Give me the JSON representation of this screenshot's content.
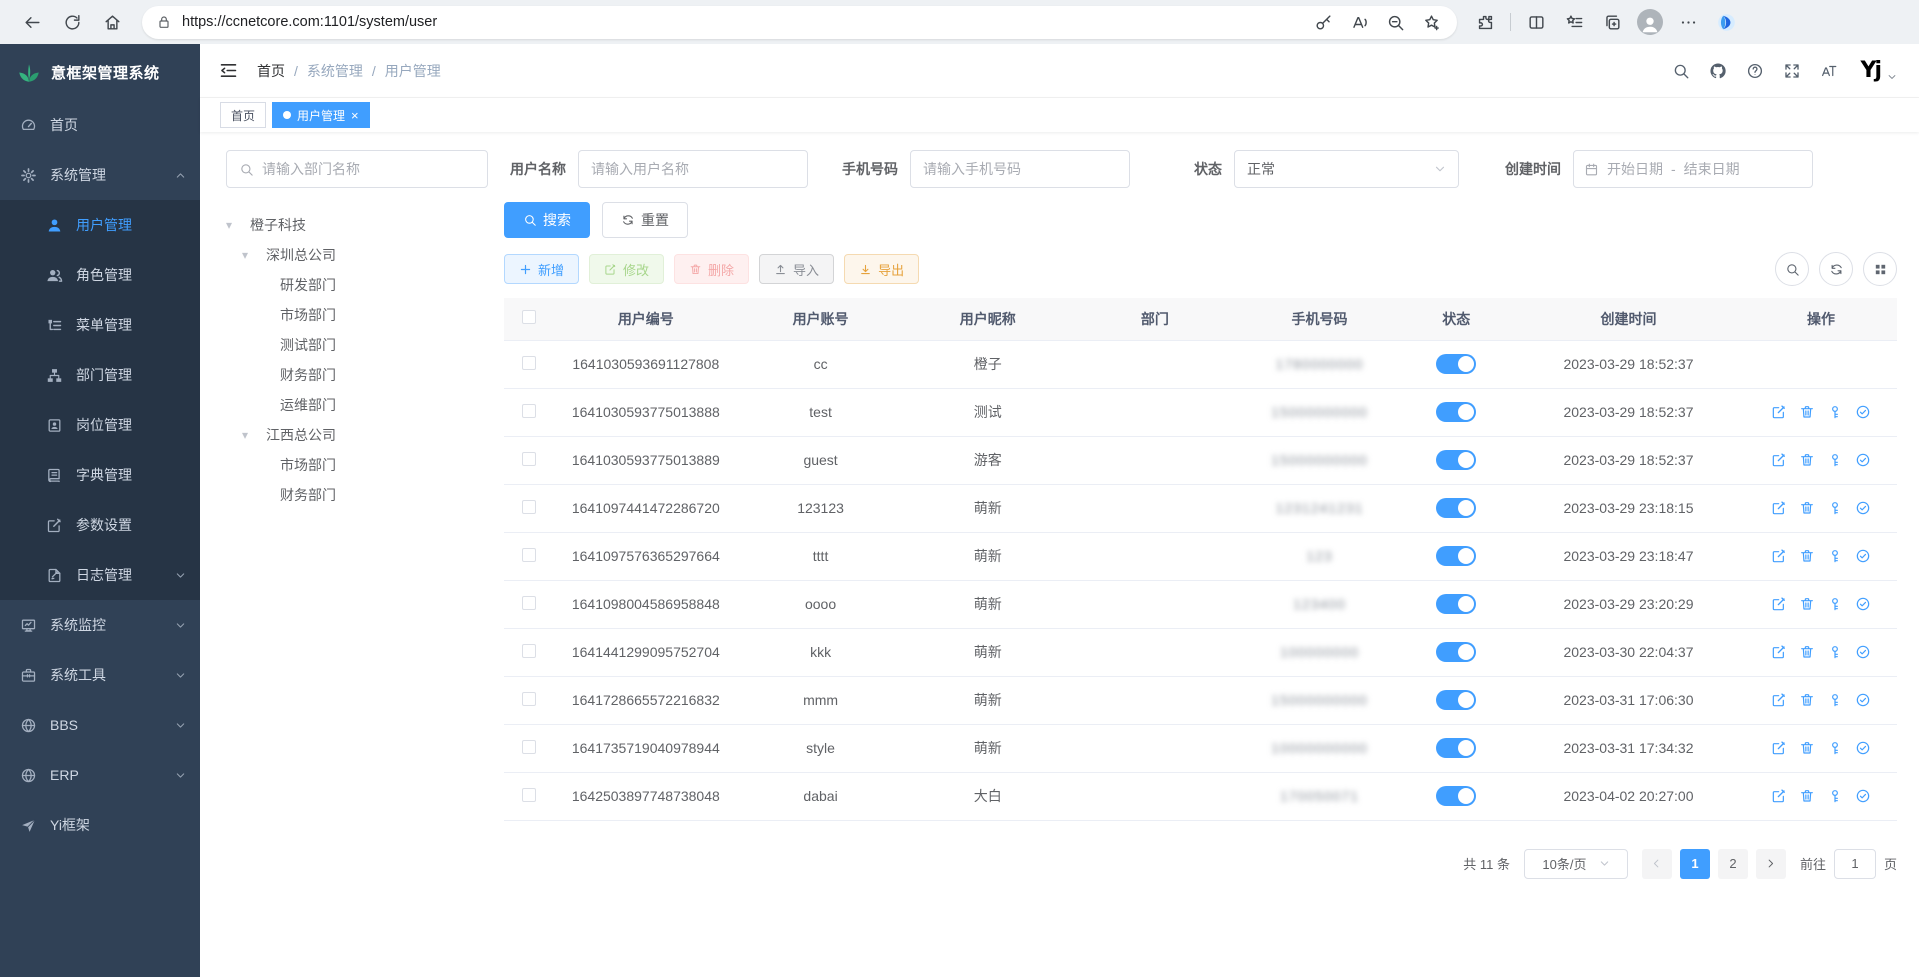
{
  "browser": {
    "url": "https://ccnetcore.com:1101/system/user",
    "left_icons": [
      "back",
      "refresh",
      "home"
    ],
    "pill_icons": [
      "key",
      "read-aloud",
      "zoom-out",
      "favorite-add"
    ],
    "right_icons": [
      "extensions",
      "split-screen",
      "favorites",
      "collections"
    ],
    "far_icons": [
      "more"
    ]
  },
  "sidebar": {
    "logo_text": "意框架管理系统",
    "items": [
      {
        "name": "home",
        "label": "首页",
        "icon": "dashboard",
        "level": 1
      },
      {
        "name": "system-mgmt",
        "label": "系统管理",
        "icon": "gear",
        "level": 1,
        "arrow": "up"
      },
      {
        "name": "user-mgmt",
        "label": "用户管理",
        "icon": "user",
        "level": 2,
        "active": true
      },
      {
        "name": "role-mgmt",
        "label": "角色管理",
        "icon": "users",
        "level": 2
      },
      {
        "name": "menu-mgmt",
        "label": "菜单管理",
        "icon": "menutree",
        "level": 2
      },
      {
        "name": "dept-mgmt",
        "label": "部门管理",
        "icon": "org",
        "level": 2
      },
      {
        "name": "post-mgmt",
        "label": "岗位管理",
        "icon": "badge",
        "level": 2
      },
      {
        "name": "dict-mgmt",
        "label": "字典管理",
        "icon": "book",
        "level": 2
      },
      {
        "name": "param-settings",
        "label": "参数设置",
        "icon": "editsq",
        "level": 2
      },
      {
        "name": "log-mgmt",
        "label": "日志管理",
        "icon": "logdoc",
        "level": 2,
        "arrow": "down"
      },
      {
        "name": "system-monitor",
        "label": "系统监控",
        "icon": "monitor",
        "level": 1,
        "arrow": "down"
      },
      {
        "name": "system-tools",
        "label": "系统工具",
        "icon": "toolbox",
        "level": 1,
        "arrow": "down"
      },
      {
        "name": "bbs",
        "label": "BBS",
        "icon": "globe",
        "level": 1,
        "arrow": "down"
      },
      {
        "name": "erp",
        "label": "ERP",
        "icon": "globe",
        "level": 1,
        "arrow": "down"
      },
      {
        "name": "yi-framework",
        "label": "Yi框架",
        "icon": "send",
        "level": 1
      }
    ]
  },
  "navbar": {
    "breadcrumb": [
      "首页",
      "系统管理",
      "用户管理"
    ],
    "separator": "/",
    "icons": [
      "search",
      "github",
      "help",
      "fullscreen",
      "font-size"
    ],
    "user_logo": "Yj"
  },
  "tabs": {
    "items": [
      {
        "name": "home",
        "label": "首页",
        "active": false,
        "closable": false
      },
      {
        "name": "user-mgmt",
        "label": "用户管理",
        "active": true,
        "closable": true
      }
    ]
  },
  "filters": {
    "dept_search": {
      "placeholder": "请输入部门名称"
    },
    "username": {
      "label": "用户名称",
      "placeholder": "请输入用户名称"
    },
    "phone": {
      "label": "手机号码",
      "placeholder": "请输入手机号码"
    },
    "status": {
      "label": "状态",
      "value": "正常"
    },
    "created": {
      "label": "创建时间",
      "start_placeholder": "开始日期",
      "separator": "-",
      "end_placeholder": "结束日期"
    }
  },
  "tree": {
    "nodes": [
      {
        "name": "orange-tech",
        "label": "橙子科技",
        "level": 1,
        "caret": true
      },
      {
        "name": "shenzhen-hq",
        "label": "深圳总公司",
        "level": 2,
        "caret": true
      },
      {
        "name": "rd-dept",
        "label": "研发部门",
        "level": 3
      },
      {
        "name": "market-dept",
        "label": "市场部门",
        "level": 3
      },
      {
        "name": "test-dept",
        "label": "测试部门",
        "level": 3
      },
      {
        "name": "finance-dept",
        "label": "财务部门",
        "level": 3
      },
      {
        "name": "ops-dept",
        "label": "运维部门",
        "level": 3
      },
      {
        "name": "jiangxi-hq",
        "label": "江西总公司",
        "level": 2,
        "caret": true
      },
      {
        "name": "market-dept-2",
        "label": "市场部门",
        "level": 3
      },
      {
        "name": "finance-dept-2",
        "label": "财务部门",
        "level": 3
      }
    ]
  },
  "toolbar": {
    "search_label": "搜索",
    "reset_label": "重置",
    "add_label": "新增",
    "edit_label": "修改",
    "delete_label": "删除",
    "import_label": "导入",
    "export_label": "导出",
    "right_icons": [
      "search",
      "refresh",
      "grid"
    ]
  },
  "table": {
    "columns": [
      "用户编号",
      "用户账号",
      "用户昵称",
      "部门",
      "手机号码",
      "状态",
      "创建时间",
      "操作"
    ],
    "action_icons": [
      "edit",
      "delete",
      "key",
      "check"
    ],
    "rows": [
      {
        "id": "1641030593691127808",
        "account": "cc",
        "nickname": "橙子",
        "dept": "",
        "phone_mask": "1780000000",
        "status": "on",
        "created": "2023-03-29 18:52:37",
        "actions": false
      },
      {
        "id": "1641030593775013888",
        "account": "test",
        "nickname": "测试",
        "dept": "",
        "phone_mask": "15000000000",
        "status": "on",
        "created": "2023-03-29 18:52:37",
        "actions": true
      },
      {
        "id": "1641030593775013889",
        "account": "guest",
        "nickname": "游客",
        "dept": "",
        "phone_mask": "15000000000",
        "status": "on",
        "created": "2023-03-29 18:52:37",
        "actions": true
      },
      {
        "id": "1641097441472286720",
        "account": "123123",
        "nickname": "萌新",
        "dept": "",
        "phone_mask": "1231241231",
        "status": "on",
        "created": "2023-03-29 23:18:15",
        "actions": true
      },
      {
        "id": "1641097576365297664",
        "account": "tttt",
        "nickname": "萌新",
        "dept": "",
        "phone_mask": "123",
        "status": "on",
        "created": "2023-03-29 23:18:47",
        "actions": true
      },
      {
        "id": "1641098004586958848",
        "account": "oooo",
        "nickname": "萌新",
        "dept": "",
        "phone_mask": "123400",
        "status": "on",
        "created": "2023-03-29 23:20:29",
        "actions": true
      },
      {
        "id": "1641441299095752704",
        "account": "kkk",
        "nickname": "萌新",
        "dept": "",
        "phone_mask": "100000000",
        "status": "on",
        "created": "2023-03-30 22:04:37",
        "actions": true
      },
      {
        "id": "1641728665572216832",
        "account": "mmm",
        "nickname": "萌新",
        "dept": "",
        "phone_mask": "15000000000",
        "status": "on",
        "created": "2023-03-31 17:06:30",
        "actions": true
      },
      {
        "id": "1641735719040978944",
        "account": "style",
        "nickname": "萌新",
        "dept": "",
        "phone_mask": "10000000000",
        "status": "on",
        "created": "2023-03-31 17:34:32",
        "actions": true
      },
      {
        "id": "1642503897748738048",
        "account": "dabai",
        "nickname": "大白",
        "dept": "",
        "phone_mask": "170050071",
        "status": "on",
        "created": "2023-04-02 20:27:00",
        "actions": true
      }
    ]
  },
  "pagination": {
    "total_label": "共 11 条",
    "page_size": "10条/页",
    "pages": [
      "1",
      "2"
    ],
    "active_page": "1",
    "goto_label": "前往",
    "goto_value": "1",
    "page_suffix": "页"
  }
}
